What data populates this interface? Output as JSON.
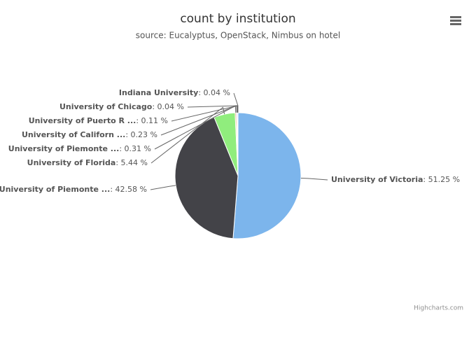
{
  "chart_data": {
    "type": "pie",
    "title": "count by institution",
    "subtitle": "source: Eucalyptus, OpenStack, Nimbus on hotel",
    "credits": "Highcharts.com",
    "categories": [
      "University of Victoria",
      "University of Piemonte ...",
      "University of Florida",
      "University of Piemonte ...",
      "University of Californ ...",
      "University of Puerto R ...",
      "University of Chicago",
      "Indiana University"
    ],
    "values": [
      51.25,
      42.58,
      5.44,
      0.31,
      0.23,
      0.11,
      0.04,
      0.04
    ],
    "value_labels": [
      ": 51.25 %",
      ": 42.58 %",
      ": 5.44 %",
      ": 0.31 %",
      ": 0.23 %",
      ": 0.11 %",
      ": 0.04 %",
      ": 0.04 %"
    ],
    "colors": [
      "#7cb5ec",
      "#434348",
      "#90ed7d",
      "#f7a35c",
      "#8085e9",
      "#f15c80",
      "#e4d354",
      "#2b908f"
    ]
  }
}
